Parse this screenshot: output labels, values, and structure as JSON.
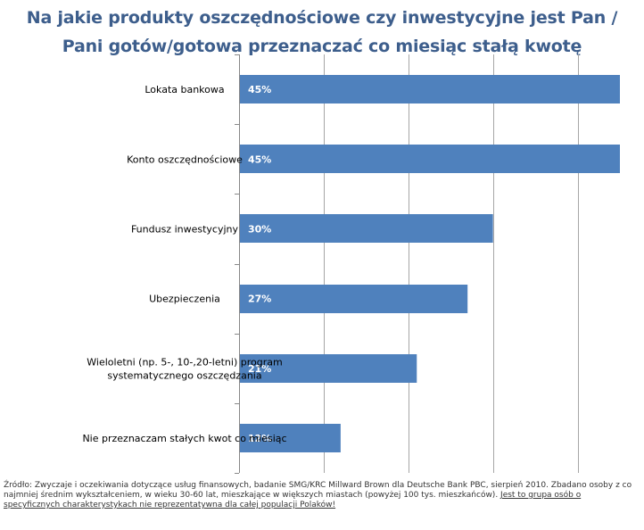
{
  "chart_data": {
    "type": "bar",
    "orientation": "horizontal",
    "title_lines": [
      "Na jakie produkty oszczędnościowe czy inwestycyjne jest Pan /",
      "Pani gotów/gotowa  przeznaczać co miesiąc stałą kwotę"
    ],
    "categories": [
      [
        "Lokata bankowa"
      ],
      [
        "Konto oszczędnościowe"
      ],
      [
        "Fundusz inwestycyjny"
      ],
      [
        "Ubezpieczenia"
      ],
      [
        "Wieloletni (np. 5-, 10-,20-letni) program",
        "systematycznego oszczędzania"
      ],
      [
        "Nie przeznaczam stałych  kwot co miesiąc"
      ]
    ],
    "values": [
      45,
      45,
      30,
      27,
      21,
      12
    ],
    "value_labels": [
      "45%",
      "45%",
      "30%",
      "27%",
      "21%",
      "12%"
    ],
    "xlim": [
      0,
      45
    ],
    "grid": true,
    "bar_color": "#4f81bd",
    "gridline_color": "#a6a6a6",
    "title_color": "#3d5e8c"
  },
  "source": {
    "text": "Źródło: Zwyczaje i oczekiwania dotyczące usług finansowych, badanie SMG/KRC Millward Brown dla Deutsche Bank PBC, sierpień 2010. Zbadano osoby z co najmniej średnim wykształceniem, w wieku 30-60 lat, mieszkające w większych miastach (powyżej 100 tys. mieszkańców). ",
    "link": "Jest to grupa osób o specyficznych charakterystykach nie reprezentatywna dla całej populacji Polaków!"
  }
}
